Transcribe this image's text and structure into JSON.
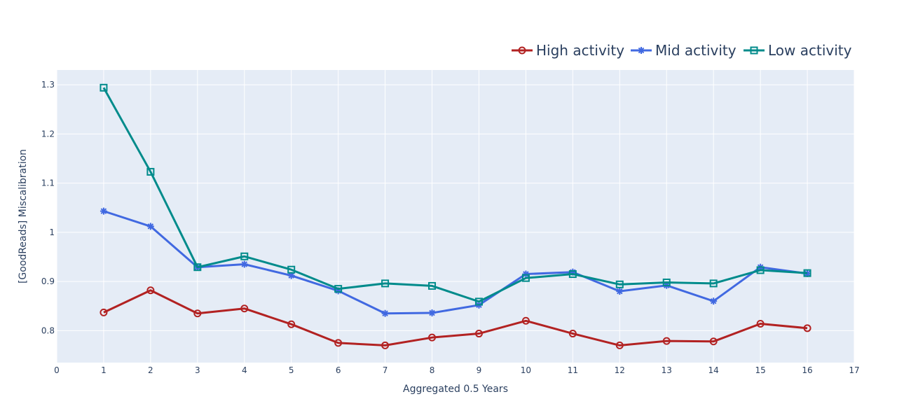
{
  "chart_data": {
    "type": "line",
    "xlabel": "Aggregated 0.5 Years",
    "ylabel": "[GoodReads] Miscalibration",
    "xlim": [
      0,
      17
    ],
    "ylim": [
      0.735,
      1.33
    ],
    "xticks": [
      0,
      1,
      2,
      3,
      4,
      5,
      6,
      7,
      8,
      9,
      10,
      11,
      12,
      13,
      14,
      15,
      16,
      17
    ],
    "yticks": [
      0.8,
      0.9,
      1,
      1.1,
      1.2,
      1.3
    ],
    "ytick_labels": [
      "0.8",
      "0.9",
      "1",
      "1.1",
      "1.2",
      "1.3"
    ],
    "grid": true,
    "legend_position": "top-right",
    "x": [
      1,
      2,
      3,
      4,
      5,
      6,
      7,
      8,
      9,
      10,
      11,
      12,
      13,
      14,
      15,
      16
    ],
    "series": [
      {
        "name": "High activity",
        "color": "#b22222",
        "marker": "circle-open",
        "values": [
          0.837,
          0.882,
          0.835,
          0.845,
          0.813,
          0.775,
          0.77,
          0.786,
          0.794,
          0.82,
          0.794,
          0.77,
          0.779,
          0.778,
          0.814,
          0.805
        ]
      },
      {
        "name": "Mid activity",
        "color": "#4169e1",
        "marker": "asterisk",
        "values": [
          1.043,
          1.012,
          0.929,
          0.935,
          0.912,
          0.881,
          0.835,
          0.836,
          0.852,
          0.915,
          0.919,
          0.88,
          0.892,
          0.86,
          0.929,
          0.916
        ]
      },
      {
        "name": "Low activity",
        "color": "#008b8b",
        "marker": "square-open",
        "values": [
          1.294,
          1.123,
          0.929,
          0.951,
          0.924,
          0.885,
          0.896,
          0.891,
          0.859,
          0.907,
          0.915,
          0.894,
          0.898,
          0.896,
          0.923,
          0.917
        ]
      }
    ]
  }
}
